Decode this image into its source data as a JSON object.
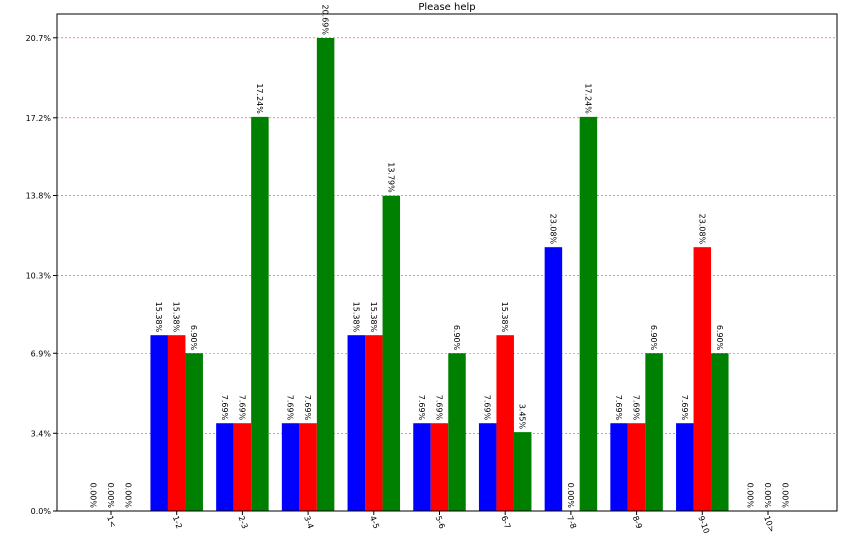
{
  "chart_data": {
    "type": "bar",
    "title": "Please help",
    "xlabel": "",
    "ylabel": "",
    "categories": [
      "1<",
      "1-2",
      "2-3",
      "3-4",
      "4-5",
      "5-6",
      "6-7",
      "7-8",
      "8-9",
      "9-10",
      "10>"
    ],
    "series": [
      {
        "color": "#0000ff",
        "values": [
          0.0,
          7.69,
          3.84,
          3.84,
          7.69,
          3.84,
          3.84,
          11.54,
          3.84,
          3.84,
          0.0
        ],
        "labels": [
          "0.00%",
          "15.38%",
          "7.69%",
          "7.69%",
          "15.38%",
          "7.69%",
          "7.69%",
          "23.08%",
          "7.69%",
          "7.69%",
          "0.00%"
        ]
      },
      {
        "color": "#ff0000",
        "values": [
          0.0,
          7.69,
          3.84,
          3.84,
          7.69,
          3.84,
          7.69,
          0.0,
          3.84,
          11.54,
          0.0
        ],
        "labels": [
          "0.00%",
          "15.38%",
          "7.69%",
          "7.69%",
          "15.38%",
          "7.69%",
          "15.38%",
          "0.00%",
          "7.69%",
          "23.08%",
          "0.00%"
        ]
      },
      {
        "color": "#008000",
        "values": [
          0.0,
          6.9,
          17.24,
          20.69,
          13.79,
          6.9,
          3.45,
          17.24,
          6.9,
          6.9,
          0.0
        ],
        "labels": [
          "0.00%",
          "6.90%",
          "17.24%",
          "20.69%",
          "13.79%",
          "6.90%",
          "3.45%",
          "17.24%",
          "6.90%",
          "6.90%",
          "0.00%"
        ]
      }
    ],
    "yticks": [
      0.0,
      3.4,
      6.9,
      10.3,
      13.8,
      17.2,
      20.7
    ],
    "ytick_labels": [
      "0.0%",
      "3.4%",
      "6.9%",
      "10.3%",
      "13.8%",
      "17.2%",
      "20.7%"
    ],
    "ylim": [
      0,
      20.69
    ],
    "grid": "horizontal dashed red"
  }
}
